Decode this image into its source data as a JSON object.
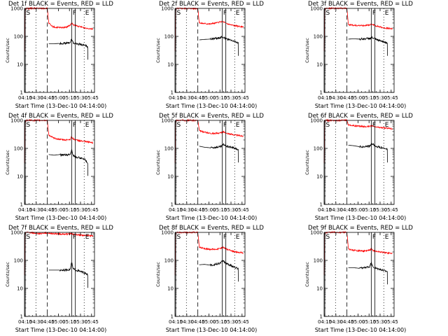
{
  "figure": {
    "background": "#ffffff",
    "series_colors": {
      "events": "#000000",
      "lld": "#ff0000"
    }
  },
  "common": {
    "xlabel": "Start Time (13-Dec-10 04:14:00)",
    "ylabel": "Counts/sec",
    "x_tick_labels": [
      "04:15",
      "04:30",
      "04:45",
      "05:00",
      "05:15",
      "05:30",
      "05:45"
    ],
    "x_tick_minutes": [
      1,
      16,
      31,
      46,
      61,
      76,
      91
    ],
    "xlim_minutes": [
      0,
      95
    ],
    "y_tick_labels": [
      "1",
      "10",
      "100",
      "1000"
    ],
    "y_tick_values": [
      1,
      10,
      100,
      1000
    ],
    "ylim": [
      1,
      1000
    ],
    "yscale": "log",
    "markers": [
      {
        "label": "S",
        "minute": 1,
        "style": "solid"
      },
      {
        "label": "",
        "minute": 15.5,
        "style": "dotted"
      },
      {
        "label": "",
        "minute": 31,
        "style": "dashed"
      },
      {
        "label": "F",
        "minute": 64,
        "style": "solid"
      },
      {
        "label": "",
        "minute": 69,
        "style": "solid"
      },
      {
        "label": "E",
        "minute": 81,
        "style": "dotted"
      }
    ]
  },
  "chart_data": [
    {
      "type": "line",
      "title": "Det 1f BLACK = Events, RED = LLD",
      "series": [
        {
          "name": "Events",
          "color": "#000000",
          "x": [
            33,
            40,
            48,
            55,
            62,
            64,
            66,
            70,
            76,
            82,
            86
          ],
          "y": [
            55,
            55,
            56,
            57,
            60,
            80,
            60,
            55,
            52,
            48,
            42
          ]
        },
        {
          "name": "LLD",
          "color": "#ff0000",
          "x": [
            0,
            1,
            2,
            30,
            31,
            33,
            37,
            42,
            50,
            57,
            62,
            64,
            66,
            70,
            76,
            82,
            90,
            93
          ],
          "y": [
            30,
            900,
            1000,
            1000,
            1000,
            300,
            230,
            210,
            205,
            215,
            250,
            300,
            260,
            240,
            220,
            200,
            190,
            185
          ]
        }
      ]
    },
    {
      "type": "line",
      "title": "Det 2f BLACK = Events, RED = LLD",
      "series": [
        {
          "name": "Events",
          "color": "#000000",
          "x": [
            33,
            40,
            48,
            55,
            62,
            65,
            70,
            76,
            82,
            86
          ],
          "y": [
            75,
            78,
            80,
            85,
            90,
            95,
            80,
            72,
            65,
            58
          ]
        },
        {
          "name": "LLD",
          "color": "#ff0000",
          "x": [
            0,
            1,
            2,
            30,
            31,
            33,
            40,
            48,
            55,
            62,
            65,
            70,
            76,
            82,
            90,
            93
          ],
          "y": [
            30,
            900,
            1000,
            1000,
            1000,
            300,
            290,
            280,
            300,
            330,
            340,
            290,
            260,
            240,
            220,
            210
          ]
        }
      ]
    },
    {
      "type": "line",
      "title": "Det 3f BLACK = Events, RED = LLD",
      "series": [
        {
          "name": "Events",
          "color": "#000000",
          "x": [
            33,
            40,
            48,
            55,
            62,
            65,
            70,
            76,
            82,
            86
          ],
          "y": [
            80,
            82,
            80,
            82,
            85,
            90,
            78,
            70,
            64,
            58
          ]
        },
        {
          "name": "LLD",
          "color": "#ff0000",
          "x": [
            0,
            1,
            2,
            30,
            31,
            33,
            40,
            48,
            55,
            62,
            65,
            70,
            76,
            82,
            90,
            93
          ],
          "y": [
            30,
            900,
            1000,
            1000,
            1000,
            260,
            250,
            240,
            245,
            260,
            270,
            240,
            220,
            200,
            190,
            185
          ]
        }
      ]
    },
    {
      "type": "line",
      "title": "Det 4f BLACK = Events, RED = LLD",
      "series": [
        {
          "name": "Events",
          "color": "#000000",
          "x": [
            33,
            40,
            48,
            55,
            62,
            64,
            66,
            70,
            76,
            82,
            86
          ],
          "y": [
            60,
            58,
            60,
            58,
            60,
            90,
            55,
            50,
            45,
            40,
            30
          ]
        },
        {
          "name": "LLD",
          "color": "#ff0000",
          "x": [
            0,
            1,
            2,
            30,
            31,
            33,
            40,
            48,
            55,
            62,
            64,
            66,
            70,
            76,
            82,
            90,
            93
          ],
          "y": [
            30,
            900,
            1000,
            1000,
            1000,
            300,
            230,
            210,
            200,
            210,
            260,
            220,
            200,
            185,
            175,
            165,
            160
          ]
        }
      ]
    },
    {
      "type": "line",
      "title": "Det 5f BLACK = Events, RED = LLD",
      "series": [
        {
          "name": "Events",
          "color": "#000000",
          "x": [
            33,
            40,
            48,
            55,
            62,
            66,
            70,
            76,
            82,
            86
          ],
          "y": [
            120,
            110,
            105,
            110,
            115,
            140,
            120,
            110,
            100,
            90
          ]
        },
        {
          "name": "LLD",
          "color": "#ff0000",
          "x": [
            0,
            1,
            2,
            30,
            31,
            33,
            40,
            48,
            55,
            62,
            66,
            70,
            76,
            82,
            90,
            93
          ],
          "y": [
            30,
            900,
            1000,
            1000,
            1000,
            430,
            380,
            350,
            340,
            360,
            390,
            350,
            320,
            300,
            280,
            270
          ]
        }
      ]
    },
    {
      "type": "line",
      "title": "Det 6f BLACK = Events, RED = LLD",
      "series": [
        {
          "name": "Events",
          "color": "#000000",
          "x": [
            33,
            40,
            48,
            55,
            62,
            65,
            70,
            76,
            82,
            86
          ],
          "y": [
            130,
            125,
            115,
            115,
            120,
            150,
            120,
            110,
            100,
            90
          ]
        },
        {
          "name": "LLD",
          "color": "#ff0000",
          "x": [
            0,
            1,
            2,
            30,
            31,
            33,
            40,
            48,
            55,
            62,
            65,
            70,
            76,
            82,
            90,
            93
          ],
          "y": [
            30,
            900,
            1000,
            1000,
            1000,
            700,
            650,
            620,
            600,
            610,
            630,
            580,
            560,
            540,
            520,
            500
          ]
        }
      ]
    },
    {
      "type": "line",
      "title": "Det 7f BLACK = Events, RED = LLD",
      "series": [
        {
          "name": "Events",
          "color": "#000000",
          "x": [
            33,
            40,
            48,
            55,
            62,
            64,
            66,
            70,
            76,
            82,
            86
          ],
          "y": [
            45,
            45,
            45,
            45,
            48,
            85,
            50,
            45,
            40,
            35,
            30
          ]
        },
        {
          "name": "LLD",
          "color": "#ff0000",
          "x": [
            0,
            1,
            2,
            12,
            20,
            30,
            40,
            48,
            55,
            62,
            64,
            66,
            70,
            76,
            82,
            90,
            93
          ],
          "y": [
            30,
            900,
            1000,
            950,
            900,
            950,
            900,
            880,
            870,
            880,
            900,
            850,
            830,
            800,
            780,
            760,
            750
          ]
        }
      ]
    },
    {
      "type": "line",
      "title": "Det 8f BLACK = Events, RED = LLD",
      "series": [
        {
          "name": "Events",
          "color": "#000000",
          "x": [
            33,
            40,
            48,
            55,
            62,
            65,
            70,
            76,
            82,
            86
          ],
          "y": [
            70,
            72,
            68,
            72,
            80,
            100,
            75,
            65,
            55,
            50
          ]
        },
        {
          "name": "LLD",
          "color": "#ff0000",
          "x": [
            0,
            1,
            2,
            30,
            31,
            33,
            40,
            48,
            55,
            62,
            65,
            70,
            76,
            82,
            90,
            93
          ],
          "y": [
            30,
            900,
            1000,
            1000,
            1000,
            300,
            260,
            250,
            250,
            270,
            300,
            250,
            220,
            200,
            190,
            180
          ]
        }
      ]
    },
    {
      "type": "line",
      "title": "Det 9f BLACK = Events, RED = LLD",
      "series": [
        {
          "name": "Events",
          "color": "#000000",
          "x": [
            33,
            40,
            48,
            55,
            62,
            64,
            66,
            70,
            76,
            82,
            86
          ],
          "y": [
            55,
            55,
            52,
            55,
            60,
            90,
            58,
            52,
            48,
            42,
            40
          ]
        },
        {
          "name": "LLD",
          "color": "#ff0000",
          "x": [
            0,
            1,
            2,
            30,
            31,
            33,
            40,
            48,
            55,
            62,
            64,
            66,
            70,
            76,
            82,
            90,
            93
          ],
          "y": [
            30,
            900,
            1000,
            1000,
            1000,
            250,
            230,
            220,
            215,
            230,
            260,
            230,
            210,
            200,
            190,
            180,
            175
          ]
        }
      ]
    }
  ]
}
